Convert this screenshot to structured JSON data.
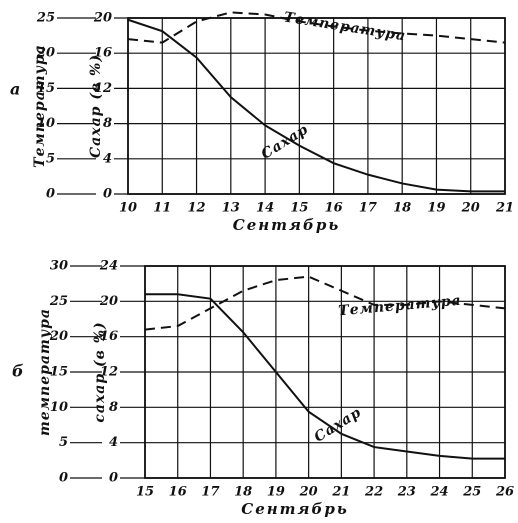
{
  "chart_data": [
    {
      "type": "line",
      "label": "а",
      "xlabel": "Сентябрь",
      "ylabel": "Температура",
      "y2label": "Сахар (в %)",
      "x": [
        10,
        11,
        12,
        13,
        14,
        15,
        16,
        17,
        18,
        19,
        20,
        21
      ],
      "xlim": [
        10,
        21
      ],
      "xticks": [
        10,
        11,
        12,
        13,
        14,
        15,
        16,
        17,
        18,
        19,
        20,
        21
      ],
      "ylim": [
        0,
        25
      ],
      "yticks": [
        0,
        5,
        10,
        15,
        20,
        25
      ],
      "y2lim": [
        0,
        20
      ],
      "y2ticks": [
        0,
        4,
        8,
        12,
        16,
        20
      ],
      "grid": true,
      "series": [
        {
          "name": "Сахар",
          "axis": "y2",
          "color": "#111111",
          "dashed": false,
          "values": [
            19.8,
            18.5,
            15.5,
            11,
            7.8,
            5.5,
            3.5,
            2.2,
            1.2,
            0.5,
            0.3,
            0.3
          ]
        },
        {
          "name": "Температура",
          "color": "#111111",
          "dashed": true,
          "values": [
            22,
            21.5,
            24.5,
            25.8,
            25.5,
            24.5,
            23.8,
            23.2,
            22.8,
            22.5,
            22,
            21.5
          ]
        }
      ]
    },
    {
      "type": "line",
      "label": "б",
      "xlabel": "Сентябрь",
      "ylabel": "температура",
      "y2label": "сахар (в %)",
      "x": [
        15,
        16,
        17,
        18,
        19,
        20,
        21,
        22,
        23,
        24,
        25,
        26
      ],
      "xlim": [
        15,
        26
      ],
      "xticks": [
        15,
        16,
        17,
        18,
        19,
        20,
        21,
        22,
        23,
        24,
        25,
        26
      ],
      "ylim": [
        0,
        30
      ],
      "yticks": [
        0,
        5,
        10,
        15,
        20,
        25,
        30
      ],
      "y2lim": [
        0,
        24
      ],
      "y2ticks": [
        0,
        4,
        8,
        12,
        16,
        20,
        24
      ],
      "grid": true,
      "series": [
        {
          "name": "Сахар",
          "axis": "y2",
          "color": "#111111",
          "dashed": false,
          "values": [
            20.8,
            20.8,
            20.3,
            16.5,
            12,
            7.5,
            5,
            3.5,
            3,
            2.5,
            2.2,
            2.2
          ]
        },
        {
          "name": "Температура",
          "color": "#111111",
          "dashed": true,
          "values": [
            21,
            21.5,
            24,
            26.5,
            28,
            28.5,
            26.5,
            24.5,
            24.5,
            25,
            24.5,
            24
          ]
        }
      ]
    }
  ]
}
